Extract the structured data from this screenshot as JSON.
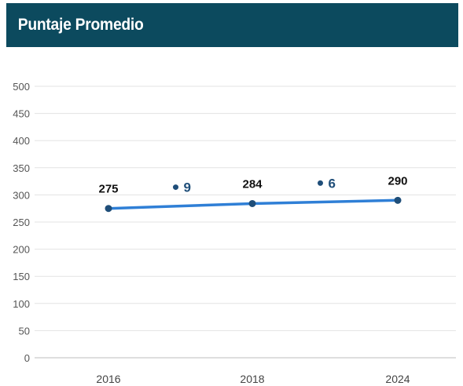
{
  "header": {
    "title": "Puntaje Promedio",
    "background": "#0c4a5e"
  },
  "chart_data": {
    "type": "line",
    "title": "Puntaje Promedio",
    "xlabel": "",
    "ylabel": "",
    "categories": [
      "2016",
      "2018",
      "2024"
    ],
    "ylim": [
      0,
      500
    ],
    "yticks": [
      0,
      50,
      100,
      150,
      200,
      250,
      300,
      350,
      400,
      450,
      500
    ],
    "grid": true,
    "series": [
      {
        "values": [
          275,
          284,
          290
        ],
        "color": "#2f7fd6",
        "point_color": "#1f4e79"
      }
    ],
    "data_labels": [
      "275",
      "284",
      "290"
    ],
    "deltas": [
      {
        "between": [
          0,
          1
        ],
        "label": "9",
        "color": "#1f4e79"
      },
      {
        "between": [
          1,
          2
        ],
        "label": "6",
        "color": "#1f4e79"
      }
    ]
  }
}
